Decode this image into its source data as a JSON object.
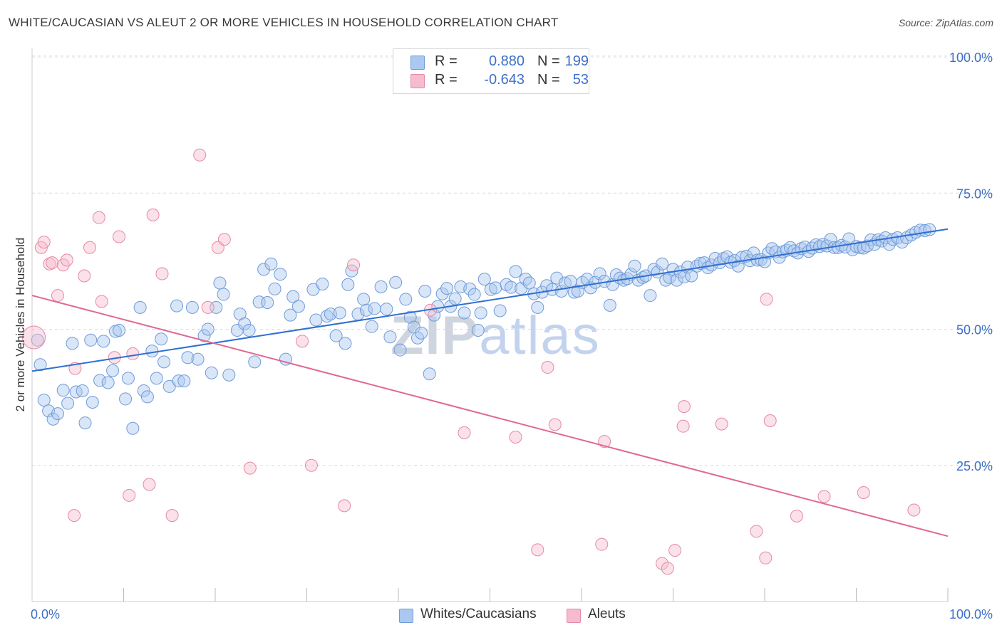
{
  "title": "WHITE/CAUCASIAN VS ALEUT 2 OR MORE VEHICLES IN HOUSEHOLD CORRELATION CHART",
  "source": "Source: ZipAtlas.com",
  "watermark": {
    "zip": "ZIP",
    "atlas": "atlas"
  },
  "legend": {
    "r_label": "R =",
    "n_label": "N =",
    "rows": [
      {
        "r": "0.880",
        "n": "199",
        "color": "#aac8f0",
        "border": "#6f9bd8"
      },
      {
        "r": "-0.643",
        "n": "53",
        "color": "#f6bccd",
        "border": "#e48aa8"
      }
    ]
  },
  "bottom_legend": [
    {
      "label": "Whites/Caucasians",
      "color": "#aac8f0",
      "border": "#6f9bd8"
    },
    {
      "label": "Aleuts",
      "color": "#f6bccd",
      "border": "#e48aa8"
    }
  ],
  "chart_data": {
    "type": "scatter",
    "title": "WHITE/CAUCASIAN VS ALEUT 2 OR MORE VEHICLES IN HOUSEHOLD CORRELATION CHART",
    "xlabel": "",
    "ylabel": "2 or more Vehicles in Household",
    "xlim": [
      0,
      100
    ],
    "ylim": [
      0,
      102
    ],
    "x_tick_labels": [
      {
        "value": 0,
        "label": "0.0%"
      },
      {
        "value": 100,
        "label": "100.0%"
      }
    ],
    "y_tick_labels": [
      {
        "value": 25,
        "label": "25.0%"
      },
      {
        "value": 50,
        "label": "50.0%"
      },
      {
        "value": 75,
        "label": "75.0%"
      },
      {
        "value": 100,
        "label": "100.0%"
      }
    ],
    "grid": true,
    "legend_position": "top-center",
    "series": [
      {
        "name": "Whites/Caucasians",
        "color": "#7fa8e0",
        "line_color": "#2f6fd1",
        "trend": {
          "x": [
            0,
            100
          ],
          "y": [
            42.3,
            68.4
          ]
        },
        "points": [
          [
            0.6,
            48
          ],
          [
            0.9,
            43.5
          ],
          [
            1.3,
            37
          ],
          [
            1.8,
            35
          ],
          [
            2.3,
            33.5
          ],
          [
            2.8,
            34.5
          ],
          [
            3.4,
            38.8
          ],
          [
            3.9,
            36.4
          ],
          [
            4.4,
            47.4
          ],
          [
            4.8,
            38.5
          ],
          [
            5.5,
            38.7
          ],
          [
            5.8,
            32.8
          ],
          [
            6.4,
            48
          ],
          [
            6.6,
            36.6
          ],
          [
            7.4,
            40.6
          ],
          [
            7.8,
            47.8
          ],
          [
            8.3,
            40.2
          ],
          [
            8.8,
            42.4
          ],
          [
            9.1,
            49.6
          ],
          [
            9.5,
            49.8
          ],
          [
            10.2,
            37.2
          ],
          [
            10.5,
            41
          ],
          [
            11,
            31.8
          ],
          [
            11.8,
            54
          ],
          [
            12.2,
            38.7
          ],
          [
            12.6,
            37.6
          ],
          [
            13.1,
            46
          ],
          [
            13.6,
            41
          ],
          [
            14.1,
            48.2
          ],
          [
            14.4,
            44
          ],
          [
            15,
            39.5
          ],
          [
            15.8,
            54.3
          ],
          [
            16,
            40.5
          ],
          [
            16.6,
            40.5
          ],
          [
            17,
            44.8
          ],
          [
            17.5,
            54
          ],
          [
            18.1,
            44.5
          ],
          [
            18.8,
            48.8
          ],
          [
            19.2,
            50
          ],
          [
            19.6,
            42
          ],
          [
            20.1,
            54
          ],
          [
            20.5,
            58.5
          ],
          [
            20.9,
            56.4
          ],
          [
            21.5,
            41.6
          ],
          [
            22.4,
            49.8
          ],
          [
            22.7,
            52.8
          ],
          [
            23.2,
            51
          ],
          [
            23.7,
            49.8
          ],
          [
            24.3,
            44
          ],
          [
            24.8,
            55
          ],
          [
            25.3,
            61
          ],
          [
            25.7,
            54.9
          ],
          [
            26.1,
            62
          ],
          [
            26.5,
            57.4
          ],
          [
            27.1,
            60.1
          ],
          [
            27.7,
            44.5
          ],
          [
            28.2,
            52.6
          ],
          [
            28.5,
            56
          ],
          [
            29.1,
            54.2
          ],
          [
            30.7,
            57.3
          ],
          [
            31,
            51.7
          ],
          [
            31.7,
            58.3
          ],
          [
            32.2,
            52.4
          ],
          [
            32.6,
            52.8
          ],
          [
            33.2,
            48.8
          ],
          [
            33.6,
            53
          ],
          [
            34.2,
            47.4
          ],
          [
            34.5,
            58.2
          ],
          [
            34.9,
            60.7
          ],
          [
            35.6,
            52.8
          ],
          [
            36.2,
            55.5
          ],
          [
            36.5,
            53.5
          ],
          [
            37.1,
            50.5
          ],
          [
            37.4,
            53.8
          ],
          [
            38.1,
            57.8
          ],
          [
            38.7,
            53.7
          ],
          [
            39.1,
            48.6
          ],
          [
            39.7,
            58.6
          ],
          [
            40.2,
            46.2
          ],
          [
            40.8,
            55.5
          ],
          [
            41.3,
            52.2
          ],
          [
            41.7,
            50.4
          ],
          [
            42.1,
            48.4
          ],
          [
            42.5,
            49.3
          ],
          [
            42.9,
            57
          ],
          [
            43.4,
            41.8
          ],
          [
            43.9,
            52.6
          ],
          [
            44.3,
            54.2
          ],
          [
            44.8,
            56.5
          ],
          [
            45.3,
            57.5
          ],
          [
            45.7,
            54.2
          ],
          [
            46.2,
            55.6
          ],
          [
            46.8,
            57.8
          ],
          [
            47.2,
            53
          ],
          [
            47.8,
            57.4
          ],
          [
            48.3,
            56.4
          ],
          [
            48.7,
            49.8
          ],
          [
            49,
            53
          ],
          [
            49.4,
            59.2
          ],
          [
            50.1,
            57.3
          ],
          [
            50.6,
            57.6
          ],
          [
            51.1,
            53.4
          ],
          [
            51.8,
            58.2
          ],
          [
            52.3,
            57.7
          ],
          [
            52.8,
            60.6
          ],
          [
            53.4,
            57.5
          ],
          [
            53.9,
            59.2
          ],
          [
            54.3,
            58.5
          ],
          [
            54.8,
            56.5
          ],
          [
            55.2,
            54
          ],
          [
            55.7,
            56.8
          ],
          [
            56.2,
            58
          ],
          [
            56.8,
            57.3
          ],
          [
            57.3,
            59.4
          ],
          [
            57.8,
            57
          ],
          [
            58.2,
            58.5
          ],
          [
            58.8,
            58.8
          ],
          [
            59.2,
            56.8
          ],
          [
            59.6,
            57
          ],
          [
            60.1,
            58.6
          ],
          [
            60.6,
            59.2
          ],
          [
            61,
            57.6
          ],
          [
            61.5,
            58.6
          ],
          [
            62,
            60.2
          ],
          [
            62.5,
            58.8
          ],
          [
            63.1,
            54.4
          ],
          [
            63.4,
            58.2
          ],
          [
            63.8,
            60
          ],
          [
            64.2,
            59.4
          ],
          [
            64.6,
            59
          ],
          [
            65,
            59.3
          ],
          [
            65.4,
            60.1
          ],
          [
            65.8,
            61.6
          ],
          [
            66.2,
            59
          ],
          [
            66.7,
            59.5
          ],
          [
            67,
            59.8
          ],
          [
            67.5,
            56.2
          ],
          [
            67.9,
            61
          ],
          [
            68.3,
            60.5
          ],
          [
            68.8,
            62
          ],
          [
            69.2,
            59
          ],
          [
            69.6,
            59.5
          ],
          [
            70,
            61
          ],
          [
            70.4,
            59
          ],
          [
            70.8,
            60.5
          ],
          [
            71.2,
            59.6
          ],
          [
            71.6,
            61.4
          ],
          [
            72,
            59.8
          ],
          [
            72.6,
            61.6
          ],
          [
            73,
            62.1
          ],
          [
            73.4,
            62.2
          ],
          [
            73.8,
            61.3
          ],
          [
            74.2,
            61.8
          ],
          [
            74.6,
            63
          ],
          [
            75.1,
            62.2
          ],
          [
            75.5,
            63
          ],
          [
            75.9,
            63.3
          ],
          [
            76.3,
            62.3
          ],
          [
            76.7,
            62.6
          ],
          [
            77.1,
            61.6
          ],
          [
            77.5,
            63.2
          ],
          [
            78,
            63.4
          ],
          [
            78.4,
            62.6
          ],
          [
            78.8,
            64
          ],
          [
            79.2,
            62.7
          ],
          [
            79.6,
            62.8
          ],
          [
            80,
            62.4
          ],
          [
            80.4,
            64
          ],
          [
            80.8,
            64.8
          ],
          [
            81.2,
            64.2
          ],
          [
            81.6,
            63.2
          ],
          [
            82,
            64.2
          ],
          [
            82.4,
            64.5
          ],
          [
            82.8,
            65
          ],
          [
            83.2,
            64.4
          ],
          [
            83.6,
            64
          ],
          [
            84,
            64.8
          ],
          [
            84.4,
            65.1
          ],
          [
            84.8,
            64.3
          ],
          [
            85.2,
            64.9
          ],
          [
            85.6,
            65.5
          ],
          [
            86,
            65.2
          ],
          [
            86.4,
            65.6
          ],
          [
            86.8,
            65.3
          ],
          [
            87.2,
            66.5
          ],
          [
            87.6,
            65
          ],
          [
            88,
            65
          ],
          [
            88.4,
            65.4
          ],
          [
            88.8,
            65.1
          ],
          [
            89.2,
            66.6
          ],
          [
            89.6,
            64.6
          ],
          [
            90,
            65.2
          ],
          [
            90.4,
            65
          ],
          [
            90.8,
            64.9
          ],
          [
            91.2,
            65.3
          ],
          [
            91.6,
            66.4
          ],
          [
            92,
            65.6
          ],
          [
            92.4,
            66.4
          ],
          [
            92.8,
            66.2
          ],
          [
            93.2,
            66.8
          ],
          [
            93.6,
            65.6
          ],
          [
            94,
            66.5
          ],
          [
            94.5,
            66.8
          ],
          [
            95,
            66
          ],
          [
            95.5,
            66.8
          ],
          [
            96,
            67.3
          ],
          [
            96.5,
            67.8
          ],
          [
            97,
            68.2
          ],
          [
            97.5,
            68.1
          ],
          [
            98,
            68.3
          ]
        ]
      },
      {
        "name": "Aleuts",
        "color": "#f4b3c6",
        "line_color": "#e06892",
        "trend": {
          "x": [
            0,
            100
          ],
          "y": [
            56.2,
            12
          ]
        },
        "points": [
          [
            0.2,
            48.5
          ],
          [
            1,
            65
          ],
          [
            1.3,
            66
          ],
          [
            1.9,
            62
          ],
          [
            2.2,
            62.2
          ],
          [
            2.8,
            56.2
          ],
          [
            3.4,
            61.8
          ],
          [
            3.8,
            62.7
          ],
          [
            4.6,
            15.8
          ],
          [
            4.7,
            42.8
          ],
          [
            5.7,
            59.8
          ],
          [
            6.3,
            65
          ],
          [
            7.3,
            70.5
          ],
          [
            7.6,
            55.1
          ],
          [
            9,
            44.8
          ],
          [
            9.5,
            67
          ],
          [
            10.6,
            19.5
          ],
          [
            11,
            45.5
          ],
          [
            12.8,
            21.5
          ],
          [
            13.2,
            71
          ],
          [
            14.2,
            60.2
          ],
          [
            15.3,
            15.8
          ],
          [
            18.3,
            82
          ],
          [
            19.2,
            54
          ],
          [
            20.3,
            65
          ],
          [
            21,
            66.5
          ],
          [
            23.8,
            24.5
          ],
          [
            29.5,
            47.8
          ],
          [
            30.5,
            25
          ],
          [
            34.1,
            17.6
          ],
          [
            35.1,
            61.8
          ],
          [
            43.5,
            53.5
          ],
          [
            47.2,
            31
          ],
          [
            52.8,
            30.2
          ],
          [
            55.2,
            9.5
          ],
          [
            56.3,
            43
          ],
          [
            57.1,
            32.5
          ],
          [
            62.2,
            10.5
          ],
          [
            62.5,
            29.4
          ],
          [
            68.8,
            7
          ],
          [
            69.4,
            6.1
          ],
          [
            70.2,
            9.4
          ],
          [
            71.1,
            32.2
          ],
          [
            71.2,
            35.8
          ],
          [
            75.3,
            32.6
          ],
          [
            79.1,
            12.9
          ],
          [
            80.1,
            8
          ],
          [
            80.2,
            55.5
          ],
          [
            80.6,
            33.2
          ],
          [
            83.5,
            15.7
          ],
          [
            86.5,
            19.3
          ],
          [
            90.8,
            20
          ],
          [
            96.3,
            16.8
          ]
        ]
      }
    ]
  }
}
